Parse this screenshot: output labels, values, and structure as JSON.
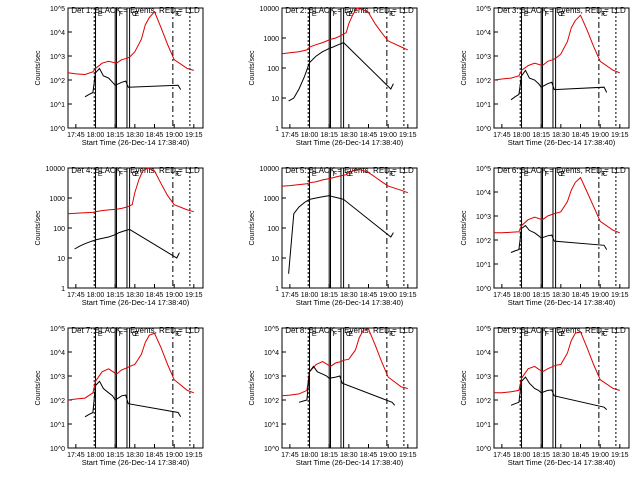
{
  "figure": {
    "x_label": "Start Time (26-Dec-14 17:38:40)",
    "y_label": "Counts/sec",
    "x_ticks": [
      "17:45",
      "18:00",
      "18:15",
      "18:30",
      "18:45",
      "19:00",
      "19:15"
    ],
    "colors": {
      "events": "#000000",
      "lld": "#dd0000",
      "axes": "#000000"
    }
  },
  "chart_data": [
    {
      "type": "line",
      "title": "Det 1: BLACK = Events, RED = LLD",
      "y_scale": "log",
      "y_ticks": [
        "10^0",
        "10^1",
        "10^2",
        "10^3",
        "10^4",
        "10^5"
      ],
      "ylim": [
        1,
        100000
      ],
      "xlabel": "Start Time (26-Dec-14 17:38:40)",
      "ylabel": "Counts/sec",
      "marker_labels": [
        "E",
        "F",
        "C",
        "E",
        "F",
        "C"
      ],
      "series": [
        {
          "color": "#dd0000",
          "x": [
            "17:39",
            "17:45",
            "17:52",
            "17:58",
            "18:00",
            "18:05",
            "18:10",
            "18:16",
            "18:20",
            "18:24",
            "18:26",
            "18:30",
            "18:35",
            "18:38",
            "18:41",
            "18:45",
            "18:50",
            "18:55",
            "19:00",
            "19:10",
            "19:15"
          ],
          "y": [
            200,
            180,
            170,
            220,
            300,
            500,
            600,
            500,
            700,
            800,
            900,
            1500,
            5000,
            20000,
            40000,
            70000,
            15000,
            3000,
            700,
            300,
            250
          ]
        },
        {
          "color": "#000000",
          "x": [
            "17:52",
            "17:55",
            "17:58",
            "18:00",
            "18:03",
            "18:06",
            "18:10",
            "18:13",
            "18:15",
            "18:20",
            "18:23",
            "18:25",
            "19:03",
            "19:05"
          ],
          "y": [
            20,
            25,
            30,
            200,
            300,
            150,
            120,
            80,
            60,
            80,
            90,
            50,
            60,
            40
          ]
        }
      ]
    },
    {
      "type": "line",
      "title": "Det 2: BLACK = Events, RED = LLD",
      "y_scale": "log",
      "y_ticks": [
        "1",
        "10",
        "100",
        "1000",
        "10000"
      ],
      "ylim": [
        1,
        10000
      ],
      "xlabel": "Start Time (26-Dec-14 17:38:40)",
      "ylabel": "Counts/sec",
      "marker_labels": [
        "E",
        "F",
        "C",
        "E",
        "F",
        "C"
      ],
      "series": [
        {
          "color": "#dd0000",
          "x": [
            "17:39",
            "17:45",
            "17:52",
            "17:58",
            "18:00",
            "18:05",
            "18:10",
            "18:16",
            "18:20",
            "18:24",
            "18:28",
            "18:30",
            "18:33",
            "18:36",
            "18:40",
            "18:45",
            "18:50",
            "18:55",
            "19:00",
            "19:10",
            "19:15"
          ],
          "y": [
            300,
            320,
            350,
            400,
            500,
            600,
            700,
            900,
            1000,
            1200,
            1500,
            3000,
            6000,
            10000,
            9000,
            7000,
            3000,
            1500,
            800,
            500,
            400
          ]
        },
        {
          "color": "#000000",
          "x": [
            "17:44",
            "17:48",
            "17:52",
            "17:56",
            "18:00",
            "18:05",
            "18:10",
            "18:15",
            "18:18",
            "18:22",
            "18:26",
            "19:02",
            "19:04"
          ],
          "y": [
            8,
            10,
            20,
            50,
            150,
            250,
            350,
            450,
            500,
            600,
            700,
            20,
            30
          ]
        }
      ]
    },
    {
      "type": "line",
      "title": "Det 3: BLACK = Events, RED = LLD",
      "y_scale": "log",
      "y_ticks": [
        "10^0",
        "10^1",
        "10^2",
        "10^3",
        "10^4",
        "10^5"
      ],
      "ylim": [
        1,
        100000
      ],
      "xlabel": "Start Time (26-Dec-14 17:38:40)",
      "ylabel": "Counts/sec",
      "marker_labels": [
        "E",
        "F",
        "C",
        "E",
        "F",
        "C"
      ],
      "series": [
        {
          "color": "#dd0000",
          "x": [
            "17:39",
            "17:45",
            "17:52",
            "17:58",
            "18:00",
            "18:05",
            "18:10",
            "18:16",
            "18:20",
            "18:24",
            "18:26",
            "18:30",
            "18:35",
            "18:38",
            "18:41",
            "18:45",
            "18:50",
            "18:55",
            "19:00",
            "19:10",
            "19:15"
          ],
          "y": [
            100,
            110,
            120,
            150,
            250,
            400,
            500,
            400,
            600,
            700,
            800,
            1200,
            4000,
            15000,
            30000,
            50000,
            12000,
            2500,
            600,
            250,
            200
          ]
        },
        {
          "color": "#000000",
          "x": [
            "17:52",
            "17:55",
            "17:58",
            "18:00",
            "18:03",
            "18:06",
            "18:10",
            "18:13",
            "18:15",
            "18:20",
            "18:23",
            "18:25",
            "19:03",
            "19:05"
          ],
          "y": [
            15,
            20,
            25,
            150,
            250,
            120,
            100,
            70,
            50,
            70,
            80,
            40,
            50,
            30
          ]
        }
      ]
    },
    {
      "type": "line",
      "title": "Det 4: BLACK = Events, RED = LLD",
      "y_scale": "log",
      "y_ticks": [
        "1",
        "10",
        "100",
        "1000",
        "10000"
      ],
      "ylim": [
        1,
        10000
      ],
      "xlabel": "Start Time (26-Dec-14 17:38:40)",
      "ylabel": "Counts/sec",
      "marker_labels": [
        "E",
        "F",
        "C",
        "E",
        "F",
        "C"
      ],
      "series": [
        {
          "color": "#dd0000",
          "x": [
            "17:39",
            "17:45",
            "17:52",
            "17:58",
            "18:00",
            "18:05",
            "18:10",
            "18:16",
            "18:20",
            "18:24",
            "18:28",
            "18:30",
            "18:33",
            "18:36",
            "18:40",
            "18:45",
            "18:50",
            "18:55",
            "19:00",
            "19:10",
            "19:15"
          ],
          "y": [
            300,
            310,
            320,
            330,
            350,
            380,
            400,
            420,
            450,
            500,
            600,
            1500,
            4000,
            8000,
            10000,
            8000,
            3000,
            1200,
            600,
            400,
            350
          ]
        },
        {
          "color": "#000000",
          "x": [
            "17:44",
            "17:48",
            "17:52",
            "17:56",
            "18:00",
            "18:05",
            "18:10",
            "18:15",
            "18:18",
            "18:22",
            "18:26",
            "19:02",
            "19:04"
          ],
          "y": [
            20,
            25,
            30,
            35,
            40,
            45,
            50,
            60,
            70,
            80,
            90,
            10,
            15
          ]
        }
      ]
    },
    {
      "type": "line",
      "title": "Det 5: BLACK = Events, RED = LLD",
      "y_scale": "log",
      "y_ticks": [
        "1",
        "10",
        "100",
        "1000",
        "10000"
      ],
      "ylim": [
        1,
        10000
      ],
      "xlabel": "Start Time (26-Dec-14 17:38:40)",
      "ylabel": "Counts/sec",
      "marker_labels": [
        "E",
        "F",
        "C",
        "E",
        "F",
        "C"
      ],
      "series": [
        {
          "color": "#dd0000",
          "x": [
            "17:39",
            "17:45",
            "17:52",
            "17:58",
            "18:00",
            "18:05",
            "18:10",
            "18:16",
            "18:20",
            "18:24",
            "18:28",
            "18:30",
            "18:33",
            "18:36",
            "18:40",
            "18:45",
            "18:50",
            "18:55",
            "19:00",
            "19:10",
            "19:15"
          ],
          "y": [
            2500,
            2600,
            2800,
            3000,
            3200,
            3500,
            4000,
            4500,
            5000,
            5500,
            6000,
            7000,
            8000,
            9000,
            8500,
            7000,
            5000,
            3500,
            2500,
            1800,
            1500
          ]
        },
        {
          "color": "#000000",
          "x": [
            "17:44",
            "17:48",
            "17:52",
            "17:56",
            "18:00",
            "18:05",
            "18:10",
            "18:15",
            "18:18",
            "18:22",
            "18:26",
            "19:02",
            "19:04"
          ],
          "y": [
            3,
            300,
            500,
            700,
            900,
            1000,
            1100,
            1200,
            1100,
            1000,
            900,
            50,
            70
          ]
        }
      ]
    },
    {
      "type": "line",
      "title": "Det 6: BLACK = Events, RED = LLD",
      "y_scale": "log",
      "y_ticks": [
        "10^0",
        "10^1",
        "10^2",
        "10^3",
        "10^4",
        "10^5"
      ],
      "ylim": [
        1,
        100000
      ],
      "xlabel": "Start Time (26-Dec-14 17:38:40)",
      "ylabel": "Counts/sec",
      "marker_labels": [
        "E",
        "F",
        "C",
        "E",
        "F",
        "C"
      ],
      "series": [
        {
          "color": "#dd0000",
          "x": [
            "17:39",
            "17:45",
            "17:52",
            "17:58",
            "18:00",
            "18:05",
            "18:10",
            "18:16",
            "18:20",
            "18:24",
            "18:26",
            "18:30",
            "18:35",
            "18:38",
            "18:41",
            "18:45",
            "18:50",
            "18:55",
            "19:00",
            "19:10",
            "19:15"
          ],
          "y": [
            200,
            200,
            210,
            220,
            400,
            700,
            900,
            700,
            1000,
            1200,
            1300,
            1500,
            4000,
            12000,
            25000,
            40000,
            10000,
            2500,
            600,
            250,
            200
          ]
        },
        {
          "color": "#000000",
          "x": [
            "17:52",
            "17:55",
            "17:58",
            "18:00",
            "18:03",
            "18:06",
            "18:10",
            "18:13",
            "18:15",
            "18:20",
            "18:23",
            "18:25",
            "19:03",
            "19:05"
          ],
          "y": [
            30,
            35,
            40,
            300,
            400,
            250,
            200,
            150,
            120,
            150,
            160,
            90,
            60,
            40
          ]
        }
      ]
    },
    {
      "type": "line",
      "title": "Det 7: BLACK = Events, RED = LLD",
      "y_scale": "log",
      "y_ticks": [
        "10^0",
        "10^1",
        "10^2",
        "10^3",
        "10^4",
        "10^5"
      ],
      "ylim": [
        1,
        100000
      ],
      "xlabel": "Start Time (26-Dec-14 17:38:40)",
      "ylabel": "Counts/sec",
      "marker_labels": [
        "E",
        "F",
        "C",
        "E",
        "F",
        "C"
      ],
      "series": [
        {
          "color": "#dd0000",
          "x": [
            "17:39",
            "17:45",
            "17:52",
            "17:58",
            "18:00",
            "18:05",
            "18:10",
            "18:16",
            "18:20",
            "18:24",
            "18:26",
            "18:30",
            "18:35",
            "18:38",
            "18:41",
            "18:45",
            "18:50",
            "18:55",
            "19:00",
            "19:10",
            "19:15"
          ],
          "y": [
            100,
            110,
            120,
            200,
            600,
            1500,
            2000,
            1200,
            1800,
            2200,
            2500,
            3000,
            8000,
            25000,
            50000,
            60000,
            15000,
            3000,
            700,
            250,
            200
          ]
        },
        {
          "color": "#000000",
          "x": [
            "17:52",
            "17:55",
            "17:58",
            "18:00",
            "18:03",
            "18:06",
            "18:10",
            "18:13",
            "18:15",
            "18:20",
            "18:23",
            "18:25",
            "19:03",
            "19:05"
          ],
          "y": [
            20,
            25,
            30,
            400,
            600,
            300,
            200,
            150,
            100,
            150,
            160,
            70,
            30,
            20
          ]
        }
      ]
    },
    {
      "type": "line",
      "title": "Det 8: BLACK = Events, RED = LLD",
      "y_scale": "log",
      "y_ticks": [
        "10^0",
        "10^1",
        "10^2",
        "10^3",
        "10^4",
        "10^5"
      ],
      "ylim": [
        1,
        100000
      ],
      "xlabel": "Start Time (26-Dec-14 17:38:40)",
      "ylabel": "Counts/sec",
      "marker_labels": [
        "E",
        "F",
        "C",
        "E",
        "F",
        "C"
      ],
      "series": [
        {
          "color": "#dd0000",
          "x": [
            "17:39",
            "17:45",
            "17:52",
            "17:58",
            "18:00",
            "18:05",
            "18:10",
            "18:16",
            "18:20",
            "18:24",
            "18:26",
            "18:30",
            "18:35",
            "18:38",
            "18:41",
            "18:45",
            "18:50",
            "18:55",
            "19:00",
            "19:10",
            "19:15"
          ],
          "y": [
            150,
            160,
            180,
            250,
            1500,
            3000,
            4000,
            2500,
            3500,
            4000,
            4500,
            5000,
            12000,
            40000,
            80000,
            90000,
            20000,
            4000,
            900,
            350,
            300
          ]
        },
        {
          "color": "#000000",
          "x": [
            "17:52",
            "17:55",
            "17:58",
            "18:00",
            "18:03",
            "18:06",
            "18:10",
            "18:13",
            "18:15",
            "18:20",
            "18:23",
            "18:25",
            "19:03",
            "19:05"
          ],
          "y": [
            80,
            90,
            100,
            1500,
            2500,
            1500,
            1200,
            1000,
            800,
            900,
            1000,
            500,
            80,
            60
          ]
        }
      ]
    },
    {
      "type": "line",
      "title": "Det 9: BLACK = Events, RED = LLD",
      "y_scale": "log",
      "y_ticks": [
        "10^0",
        "10^1",
        "10^2",
        "10^3",
        "10^4",
        "10^5"
      ],
      "ylim": [
        1,
        100000
      ],
      "xlabel": "Start Time (26-Dec-14 17:38:40)",
      "ylabel": "Counts/sec",
      "marker_labels": [
        "E",
        "F",
        "C",
        "E",
        "F",
        "C"
      ],
      "series": [
        {
          "color": "#dd0000",
          "x": [
            "17:39",
            "17:45",
            "17:52",
            "17:58",
            "18:00",
            "18:05",
            "18:10",
            "18:16",
            "18:20",
            "18:24",
            "18:26",
            "18:30",
            "18:35",
            "18:38",
            "18:41",
            "18:45",
            "18:50",
            "18:55",
            "19:00",
            "19:10",
            "19:15"
          ],
          "y": [
            200,
            200,
            220,
            250,
            800,
            2000,
            2500,
            1500,
            2000,
            2500,
            2800,
            3000,
            9000,
            30000,
            60000,
            70000,
            15000,
            3000,
            700,
            300,
            250
          ]
        },
        {
          "color": "#000000",
          "x": [
            "17:52",
            "17:55",
            "17:58",
            "18:00",
            "18:03",
            "18:06",
            "18:10",
            "18:13",
            "18:15",
            "18:20",
            "18:23",
            "18:25",
            "19:03",
            "19:05"
          ],
          "y": [
            60,
            70,
            80,
            600,
            900,
            500,
            300,
            250,
            200,
            250,
            260,
            150,
            50,
            40
          ]
        }
      ]
    }
  ]
}
